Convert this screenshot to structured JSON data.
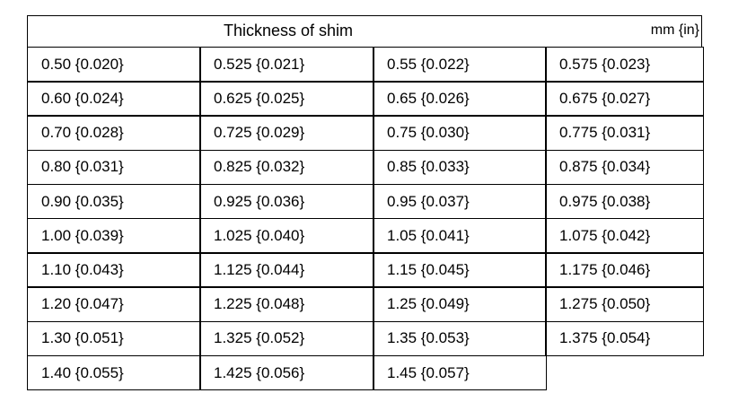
{
  "header": {
    "title": "Thickness of shim",
    "units": "mm {in}"
  },
  "table": {
    "rows": [
      [
        "0.50 {0.020}",
        "0.525 {0.021}",
        "0.55 {0.022}",
        "0.575 {0.023}"
      ],
      [
        "0.60 {0.024}",
        "0.625 {0.025}",
        "0.65 {0.026}",
        "0.675 {0.027}"
      ],
      [
        "0.70 {0.028}",
        "0.725 {0.029}",
        "0.75 {0.030}",
        "0.775 {0.031}"
      ],
      [
        "0.80 {0.031}",
        "0.825 {0.032}",
        "0.85 {0.033}",
        "0.875 {0.034}"
      ],
      [
        "0.90 {0.035}",
        "0.925 {0.036}",
        "0.95 {0.037}",
        "0.975 {0.038}"
      ],
      [
        "1.00 {0.039}",
        "1.025 {0.040}",
        "1.05 {0.041}",
        "1.075 {0.042}"
      ],
      [
        "1.10 {0.043}",
        "1.125 {0.044}",
        "1.15 {0.045}",
        "1.175 {0.046}"
      ],
      [
        "1.20 {0.047}",
        "1.225 {0.048}",
        "1.25 {0.049}",
        "1.275 {0.050}"
      ],
      [
        "1.30 {0.051}",
        "1.325 {0.052}",
        "1.35 {0.053}",
        "1.375 {0.054}"
      ],
      [
        "1.40 {0.055}",
        "1.425 {0.056}",
        "1.45 {0.057}"
      ]
    ]
  }
}
